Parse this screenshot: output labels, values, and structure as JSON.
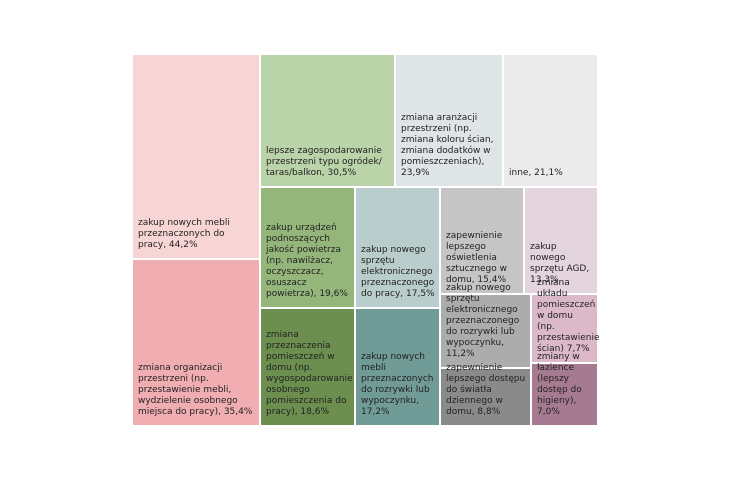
{
  "chart_data": {
    "type": "treemap",
    "categories": [
      "zakup nowych mebli przeznaczonych do pracy, 44,2%",
      "zmiana organizacji przestrzeni (np. przestawienie mebli, wydzielenie osobnego miejsca do pracy), 35,4%",
      "lepsze zagospodarowanie przestrzeni typu ogródek/ taras/balkon, 30,5%",
      "zmiana aranżacji przestrzeni (np. zmiana koloru ścian, zmiana dodatków w pomieszczeniach), 23,9%",
      "inne, 21,1%",
      "zakup urządzeń podnoszących jakość powietrza (np. nawilżacz, oczyszczacz, osuszacz powietrza), 19,6%",
      "zmiana przeznaczenia pomieszczeń w domu (np. wygospodarowanie osobnego pomieszczenia do pracy), 18,6%",
      "zakup nowego sprzętu elektronicznego przeznaczonego do pracy, 17,5%",
      "zakup nowych mebli przeznaczonych do rozrywki lub wypoczynku, 17,2%",
      "zapewnienie lepszego oświetlenia sztucznego w domu, 15,4%",
      "zakup nowego sprzętu AGD, 13,3%",
      "zakup nowego sprzętu elektronicznego przeznaczonego do rozrywki lub wypoczynku, 11,2%",
      "zapewnienie lepszego dostępu do światła dziennego w domu, 8,8%",
      "zmiana układu pomieszczeń w domu (np. przestawienie ścian) 7,7%",
      "zmiany w łazience (lepszy dostęp do higieny), 7,0%"
    ],
    "values": [
      44.2,
      35.4,
      30.5,
      23.9,
      21.1,
      19.6,
      18.6,
      17.5,
      17.2,
      15.4,
      13.3,
      11.2,
      8.8,
      7.7,
      7.0
    ],
    "colors": [
      "#f7d5d5",
      "#f0aeb2",
      "#bad3a8",
      "#dfe5e6",
      "#ebebeb",
      "#95b67b",
      "#6c8f4f",
      "#bacdcd",
      "#709b96",
      "#c5c5c5",
      "#e4d4dd",
      "#acacac",
      "#8a8a8a",
      "#dcb9c9",
      "#a67b91"
    ]
  }
}
